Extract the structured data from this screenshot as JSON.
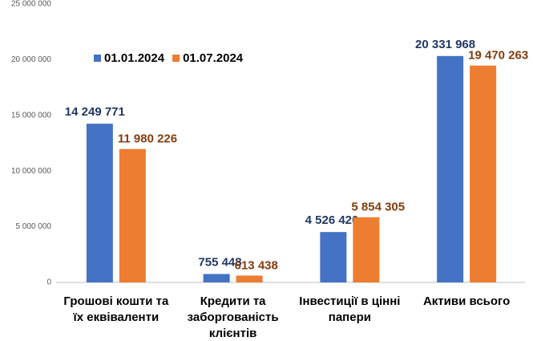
{
  "chart_data": {
    "type": "bar",
    "categories": [
      "Грошові кошти та їх еквіваленти",
      "Кредити та заборгованість клієнтів",
      "Інвестиції в цінні папери",
      "Активи всього"
    ],
    "series": [
      {
        "name": "01.01.2024",
        "color": "#4472c4",
        "label_color": "#203864",
        "values": [
          14249771,
          755448,
          4526420,
          20331968
        ],
        "value_labels": [
          "14 249 771",
          "755 448",
          "4 526 420",
          "20 331 968"
        ]
      },
      {
        "name": "01.07.2024",
        "color": "#ed7d31",
        "label_color": "#843c0c",
        "values": [
          11980226,
          613438,
          5854305,
          19470263
        ],
        "value_labels": [
          "11 980 226",
          "613 438",
          "5 854 305",
          "19 470 263"
        ]
      }
    ],
    "ylim": [
      0,
      25000000
    ],
    "yticks": [
      0,
      {
        "value": 5000000,
        "label": "5 000 000"
      },
      {
        "value": 10000000,
        "label": "10 000 000"
      },
      {
        "value": 15000000,
        "label": "15 000 000"
      },
      {
        "value": 20000000,
        "label": "20 000 000"
      },
      {
        "value": 25000000,
        "label": "25 000 000"
      }
    ],
    "grid": false,
    "legend": "top-left"
  }
}
